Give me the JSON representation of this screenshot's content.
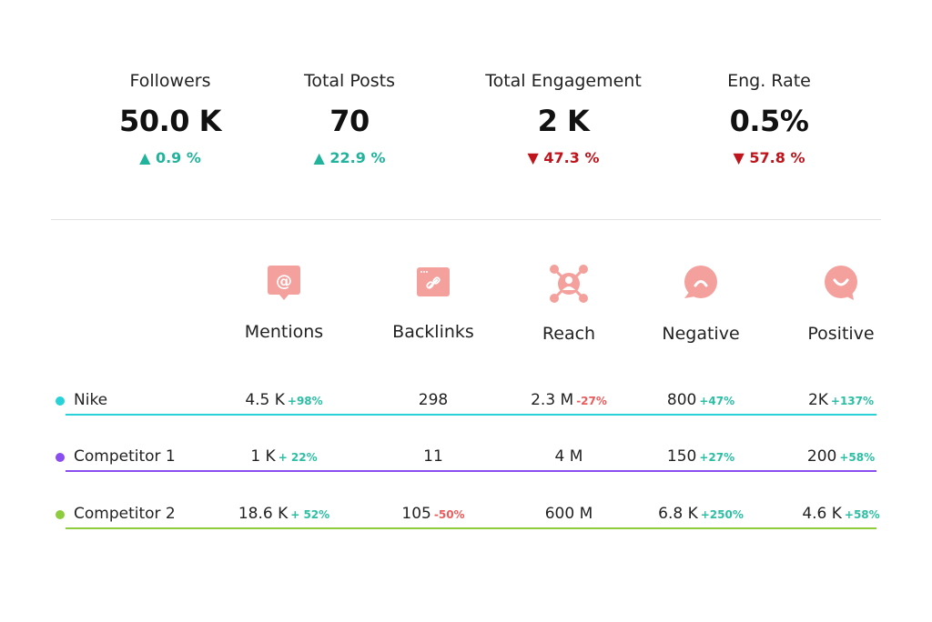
{
  "stats": [
    {
      "label": "Followers",
      "value": "50.0 K",
      "change": "0.9 %",
      "direction": "up"
    },
    {
      "label": "Total Posts",
      "value": "70",
      "change": "22.9 %",
      "direction": "up"
    },
    {
      "label": "Total Engagement",
      "value": "2 K",
      "change": "47.3 %",
      "direction": "down"
    },
    {
      "label": "Eng. Rate",
      "value": "0.5%",
      "change": "57.8 %",
      "direction": "down"
    }
  ],
  "columns": [
    {
      "label": "Mentions",
      "icon": "at-speech-bubble-icon"
    },
    {
      "label": "Backlinks",
      "icon": "link-window-icon"
    },
    {
      "label": "Reach",
      "icon": "network-person-icon"
    },
    {
      "label": "Negative",
      "icon": "sad-face-bubble-icon"
    },
    {
      "label": "Positive",
      "icon": "happy-face-bubble-icon"
    }
  ],
  "rows": [
    {
      "name": "Nike",
      "color": "#27d3d8",
      "cells": [
        {
          "value": "4.5 K",
          "delta": "+98%",
          "sign": "pos"
        },
        {
          "value": "298",
          "delta": ""
        },
        {
          "value": "2.3 M",
          "delta": "-27%",
          "sign": "neg"
        },
        {
          "value": "800",
          "delta": "+47%",
          "sign": "pos"
        },
        {
          "value": "2K",
          "delta": "+137%",
          "sign": "pos"
        }
      ]
    },
    {
      "name": "Competitor 1",
      "color": "#8a4df0",
      "cells": [
        {
          "value": "1 K",
          "delta": "+ 22%",
          "sign": "pos"
        },
        {
          "value": "11",
          "delta": ""
        },
        {
          "value": "4 M",
          "delta": ""
        },
        {
          "value": "150",
          "delta": "+27%",
          "sign": "pos"
        },
        {
          "value": "200",
          "delta": "+58%",
          "sign": "pos"
        }
      ]
    },
    {
      "name": "Competitor 2",
      "color": "#8ccc3d",
      "cells": [
        {
          "value": "18.6 K",
          "delta": "+ 52%",
          "sign": "pos"
        },
        {
          "value": "105",
          "delta": "-50%",
          "sign": "neg"
        },
        {
          "value": "600 M",
          "delta": ""
        },
        {
          "value": "6.8 K",
          "delta": "+250%",
          "sign": "pos"
        },
        {
          "value": "4.6 K",
          "delta": "+58%",
          "sign": "pos"
        }
      ]
    }
  ],
  "colors": {
    "up": "#22b39c",
    "down": "#c0141c",
    "icon": "#f4a09c"
  }
}
